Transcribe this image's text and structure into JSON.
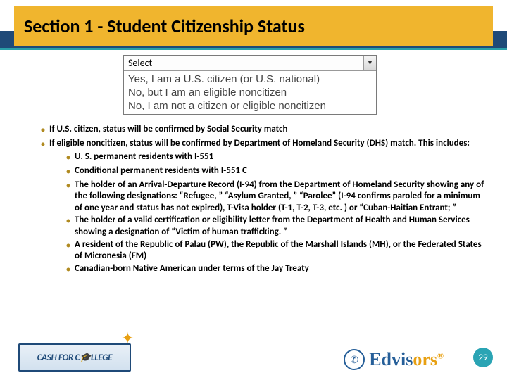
{
  "title": "Section 1 - Student Citizenship Status",
  "dropdown": {
    "placeholder": "Select",
    "options": [
      "Yes, I am a U.S. citizen (or U.S. national)",
      "No, but I am an eligible noncitizen",
      "No, I am not a citizen or eligible noncitizen"
    ]
  },
  "bullets": [
    "If U.S. citizen, status will be confirmed by Social Security match",
    "If eligible noncitizen, status will be confirmed by Department of Homeland Security (DHS) match. This includes:"
  ],
  "sub_bullets": [
    "U. S. permanent residents with I-551",
    "Conditional permanent residents with I-551 C",
    "The holder of an Arrival-Departure Record (I-94) from the Department of Homeland Security showing any of the following designations: “Refugee, ” “Asylum Granted, ” “Parolee” (I-94 confirms paroled for a minimum of one year and status has not expired), T-Visa holder (T-1, T-2, T-3, etc. ) or “Cuban-Haitian Entrant; ”",
    "The holder of a valid certification or eligibility letter from the Department of Health and Human Services showing a designation of “Victim of human trafficking. ”",
    "A resident of the Republic of Palau (PW), the Republic of the Marshall Islands (MH), or the Federated States of Micronesia (FM)",
    "Canadian-born Native American under terms of the Jay Treaty"
  ],
  "footer": {
    "logo_left": "CASH FOR C🎓LLEGE",
    "logo_right_prefix": "Edvis",
    "logo_right_suffix": "ors",
    "page": "29"
  },
  "colors": {
    "title_bg": "#f0b52e",
    "blue_band": "#1f4a78",
    "teal": "#2a9fa8",
    "bullet": "#b08a20",
    "edvisors_blue": "#265f99",
    "edvisors_orange": "#e8a012",
    "pagenum_bg": "#2aa4b4"
  }
}
